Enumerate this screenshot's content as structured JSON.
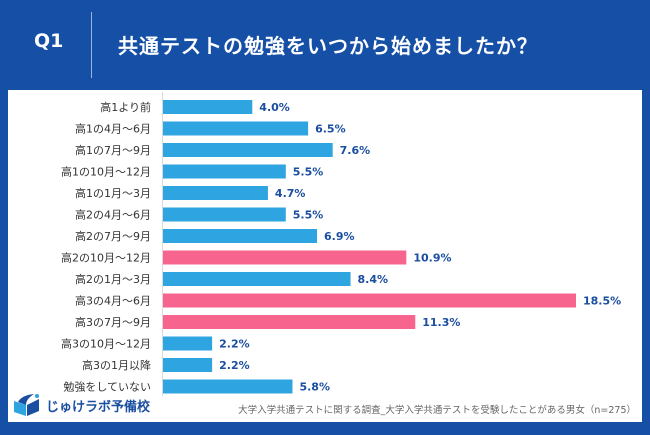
{
  "header": {
    "question_number": "Q1",
    "question": "共通テストの勉強をいつから始めましたか？"
  },
  "footer": {
    "logo_text": "じゅけラボ予備校",
    "source": "大学入学共通テストに関する調査_大学入学共通テストを受験したことがある男女（n=275）"
  },
  "colors": {
    "background": "#154fa6",
    "bar_default": "#2ea4e0",
    "bar_highlight": "#f7658f",
    "value_label": "#1a4ea0"
  },
  "chart_data": {
    "type": "bar",
    "orientation": "horizontal",
    "title": "共通テストの勉強をいつから始めましたか？",
    "xlabel": "",
    "ylabel": "",
    "unit": "%",
    "xlim": [
      0,
      18.5
    ],
    "grid": false,
    "legend": "none",
    "categories": [
      "高1より前",
      "高1の4月～6月",
      "高1の7月～9月",
      "高1の10月～12月",
      "高1の1月～3月",
      "高2の4月～6月",
      "高2の7月～9月",
      "高2の10月～12月",
      "高2の1月～3月",
      "高3の4月～6月",
      "高3の7月～9月",
      "高3の10月～12月",
      "高3の1月以降",
      "勉強をしていない"
    ],
    "values": [
      4.0,
      6.5,
      7.6,
      5.5,
      4.7,
      5.5,
      6.9,
      10.9,
      8.4,
      18.5,
      11.3,
      2.2,
      2.2,
      5.8
    ],
    "value_labels": [
      "4.0%",
      "6.5%",
      "7.6%",
      "5.5%",
      "4.7%",
      "5.5%",
      "6.9%",
      "10.9%",
      "8.4%",
      "18.5%",
      "11.3%",
      "2.2%",
      "2.2%",
      "5.8%"
    ],
    "highlighted": [
      false,
      false,
      false,
      false,
      false,
      false,
      false,
      true,
      false,
      true,
      true,
      false,
      false,
      false
    ]
  }
}
